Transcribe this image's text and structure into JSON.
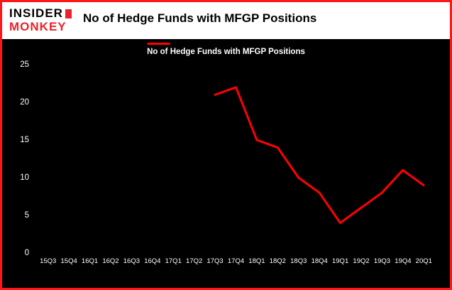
{
  "logo": {
    "line1": "INSIDER",
    "line2": "MONKEY"
  },
  "header": {
    "title": "No of Hedge Funds with MFGP Positions"
  },
  "legend": {
    "label": "No of Hedge Funds with MFGP Positions"
  },
  "colors": {
    "frame_border": "#ff1616",
    "logo_red": "#e8232a",
    "chart_background": "#000000",
    "axis_text": "#ffffff",
    "line": "#ff0000",
    "title_text": "#000000"
  },
  "chart_data": {
    "type": "line",
    "title": "No of Hedge Funds with MFGP Positions",
    "legend_label": "No of Hedge Funds with MFGP Positions",
    "legend_position": "top-center",
    "grid": false,
    "background": "#000000",
    "line_color": "#ff0000",
    "categories": [
      "15Q3",
      "15Q4",
      "16Q1",
      "16Q2",
      "16Q3",
      "16Q4",
      "17Q1",
      "17Q2",
      "17Q3",
      "17Q4",
      "18Q1",
      "18Q2",
      "18Q3",
      "18Q4",
      "19Q1",
      "19Q2",
      "19Q3",
      "19Q4",
      "20Q1"
    ],
    "values": [
      null,
      null,
      null,
      null,
      null,
      null,
      null,
      null,
      21,
      22,
      15,
      14,
      10,
      8,
      4,
      6,
      8,
      11,
      9
    ],
    "xlabel": "",
    "ylabel": "",
    "ylim": [
      0,
      25
    ],
    "yticks": [
      0,
      5,
      10,
      15,
      20,
      25
    ]
  }
}
